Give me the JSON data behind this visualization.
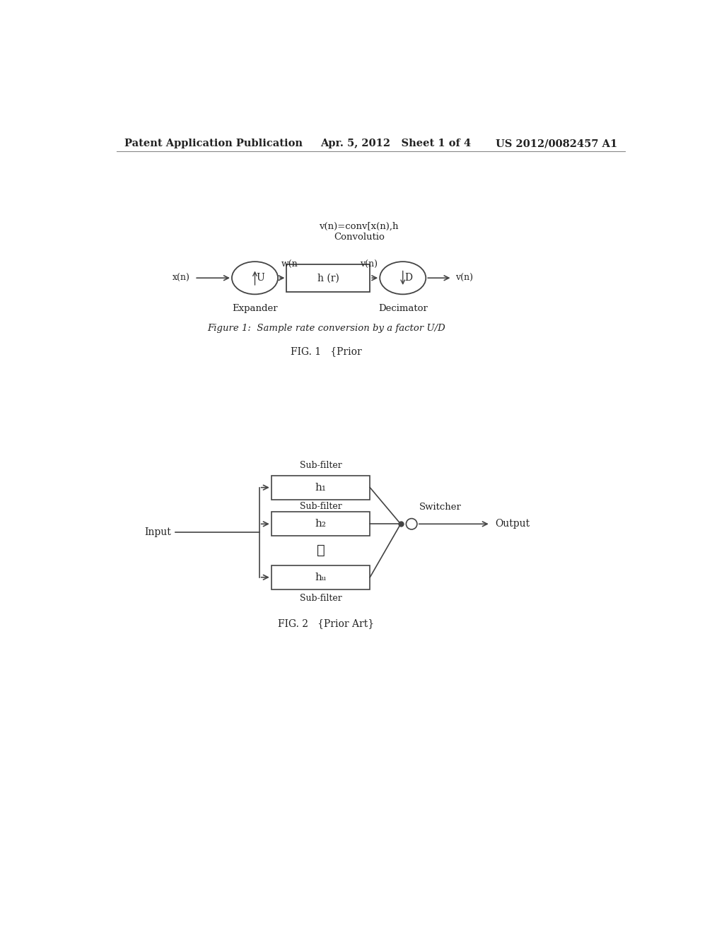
{
  "bg_color": "#ffffff",
  "header_left": "Patent Application Publication",
  "header_mid": "Apr. 5, 2012   Sheet 1 of 4",
  "header_right": "US 2012/0082457 A1",
  "fig1_above_text1": "v(n)=conv[x(n),h",
  "fig1_above_text2": "Convolutio",
  "fig1_caption": "Figure 1:  Sample rate conversion by a factor U/D",
  "fig1_label": "FIG. 1   {Prior",
  "fig1_expander_label": "Expander",
  "fig1_decimator_label": "Decimator",
  "fig1_xn_label": "x(n)",
  "fig1_wn_label": "w(n",
  "fig1_vn1_label": "v(n)",
  "fig1_vn2_label": "v(n)",
  "fig1_U_label": "U",
  "fig1_D_label": "D",
  "fig1_hr_label": "h (r)",
  "fig2_label": "FIG. 2   {Prior Art}",
  "fig2_input_label": "Input",
  "fig2_output_label": "Output",
  "fig2_switcher_label": "Switcher",
  "fig2_subfilt1_label": "Sub-filter",
  "fig2_subfilt2_label": "Sub-filter",
  "fig2_subfilt3_label": "Sub-filter",
  "fig2_h1_label": "h₁",
  "fig2_h2_label": "h₂",
  "fig2_hu_label": "hᵤ",
  "line_color": "#444444",
  "text_color": "#222222"
}
